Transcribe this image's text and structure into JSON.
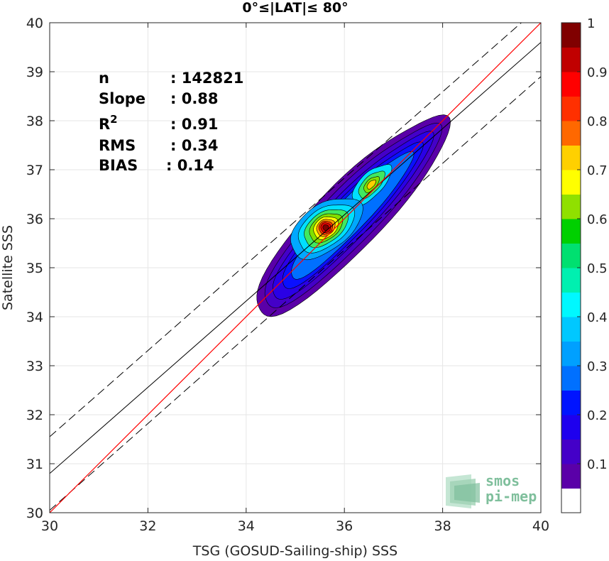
{
  "chart_data": {
    "type": "scatter",
    "subtype": "density-contour",
    "title": "0°≤|LAT|≤ 80°",
    "xlabel": "TSG (GOSUD-Sailing-ship) SSS",
    "ylabel": "Satellite SSS",
    "xlim": [
      30,
      40
    ],
    "ylim": [
      30,
      40
    ],
    "xticks": [
      "30",
      "32",
      "34",
      "36",
      "38",
      "40"
    ],
    "yticks": [
      "30",
      "31",
      "32",
      "33",
      "34",
      "35",
      "36",
      "37",
      "38",
      "39",
      "40"
    ],
    "grid": true,
    "stats": [
      {
        "name": "n",
        "value": ": 142821"
      },
      {
        "name": "Slope",
        "value": ": 0.88"
      },
      {
        "name": "R",
        "sup": "2",
        "value": ": 0.91"
      },
      {
        "name": "RMS",
        "value": ": 0.34"
      },
      {
        "name": "BIAS",
        "value": ": 0.14"
      }
    ],
    "lines": {
      "one_to_one": {
        "color": "#ff0000",
        "points": [
          [
            30,
            30
          ],
          [
            40,
            40
          ]
        ]
      },
      "regression": {
        "color": "#000000",
        "points": [
          [
            30,
            30.8
          ],
          [
            40,
            39.6
          ]
        ]
      },
      "upper_dashed": {
        "color": "#000000",
        "points": [
          [
            30,
            31.55
          ],
          [
            40,
            40.35
          ]
        ]
      },
      "lower_dashed": {
        "color": "#000000",
        "points": [
          [
            30,
            30.05
          ],
          [
            40,
            38.9
          ]
        ]
      }
    },
    "density_peaks": [
      {
        "x": 35.62,
        "y": 35.82,
        "level": 1.0
      },
      {
        "x": 36.55,
        "y": 36.7,
        "level": 0.62
      }
    ],
    "colorbar": {
      "ticks": [
        "0.1",
        "0.2",
        "0.3",
        "0.4",
        "0.5",
        "0.6",
        "0.7",
        "0.8",
        "0.9",
        "1"
      ],
      "range": [
        0,
        1
      ],
      "levels": 20,
      "colors": [
        "#ffffff",
        "#5a00a8",
        "#4400c8",
        "#2a00e6",
        "#0a10ff",
        "#0040ff",
        "#0070ff",
        "#00a8ff",
        "#00e0ff",
        "#00f0b0",
        "#40e860",
        "#00d000",
        "#80e000",
        "#c8f000",
        "#ffff00",
        "#ffd000",
        "#ff9800",
        "#ff6800",
        "#ff3000",
        "#ff0000",
        "#e00000",
        "#b00000",
        "#800000"
      ]
    }
  },
  "logo": {
    "line1": "smos",
    "line2": "pi-mep"
  }
}
